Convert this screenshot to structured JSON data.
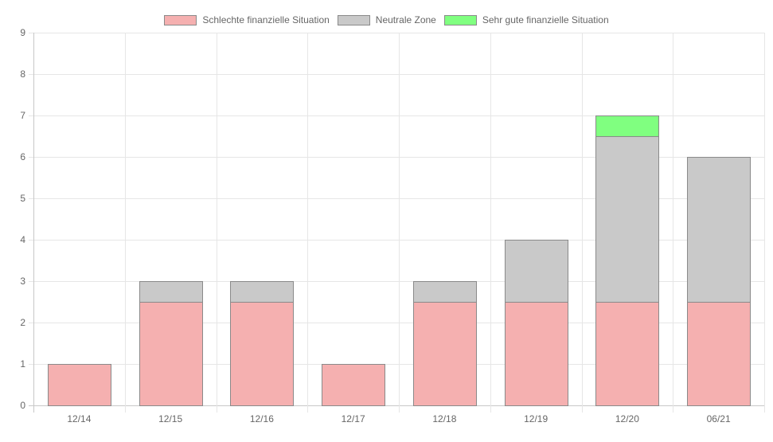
{
  "chart_data": {
    "type": "bar",
    "stacked": true,
    "categories": [
      "12/14",
      "12/15",
      "12/16",
      "12/17",
      "12/18",
      "12/19",
      "12/20",
      "06/21"
    ],
    "series": [
      {
        "name": "Schlechte finanzielle Situation",
        "values": [
          1,
          2.5,
          2.5,
          1,
          2.5,
          2.5,
          2.5,
          2.5
        ],
        "color": "#f5b0b0"
      },
      {
        "name": "Neutrale Zone",
        "values": [
          0,
          0.5,
          0.5,
          0,
          0.5,
          1.5,
          4,
          3.5
        ],
        "color": "#c9c9c9"
      },
      {
        "name": "Sehr gute finanzielle Situation",
        "values": [
          0,
          0,
          0,
          0,
          0,
          0,
          0.5,
          0
        ],
        "color": "#80ff80"
      }
    ],
    "ylim": [
      0,
      9
    ],
    "yticks": [
      0,
      1,
      2,
      3,
      4,
      5,
      6,
      7,
      8,
      9
    ],
    "grid": true,
    "legend": "top-center",
    "bar_border_color": "#8a8a8a",
    "title": "",
    "xlabel": "",
    "ylabel": ""
  }
}
